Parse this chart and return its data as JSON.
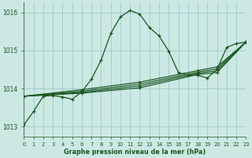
{
  "title": "Graphe pression niveau de la mer (hPa)",
  "bg_color": "#cce8e3",
  "grid_color": "#99cccc",
  "line_color_dark": "#1a5520",
  "xlim": [
    0,
    23
  ],
  "ylim": [
    1012.75,
    1016.25
  ],
  "yticks": [
    1013,
    1014,
    1015,
    1016
  ],
  "xticks": [
    0,
    1,
    2,
    3,
    4,
    5,
    6,
    7,
    8,
    9,
    10,
    11,
    12,
    13,
    14,
    15,
    16,
    17,
    18,
    19,
    20,
    21,
    22,
    23
  ],
  "hourly_x": [
    0,
    1,
    2,
    3,
    4,
    5,
    6,
    7,
    8,
    9,
    10,
    11,
    12,
    13,
    14,
    15,
    16,
    17,
    18,
    19,
    20,
    21,
    22,
    23
  ],
  "hourly_y": [
    1013.05,
    1013.4,
    1013.8,
    1013.82,
    1013.78,
    1013.72,
    1013.92,
    1014.25,
    1014.75,
    1015.45,
    1015.88,
    1016.05,
    1015.95,
    1015.6,
    1015.38,
    1014.98,
    1014.42,
    1014.35,
    1014.35,
    1014.28,
    1014.5,
    1015.08,
    1015.18,
    1015.22
  ],
  "straight_lines": [
    {
      "x": [
        0,
        6,
        12,
        18,
        20,
        23
      ],
      "y": [
        1013.8,
        1013.88,
        1014.02,
        1014.37,
        1014.42,
        1015.22
      ]
    },
    {
      "x": [
        0,
        6,
        12,
        18,
        20,
        23
      ],
      "y": [
        1013.8,
        1013.9,
        1014.07,
        1014.4,
        1014.47,
        1015.22
      ]
    },
    {
      "x": [
        0,
        6,
        12,
        18,
        20,
        23
      ],
      "y": [
        1013.8,
        1013.93,
        1014.12,
        1014.43,
        1014.52,
        1015.22
      ]
    },
    {
      "x": [
        0,
        6,
        12,
        18,
        20,
        23
      ],
      "y": [
        1013.8,
        1013.97,
        1014.17,
        1014.47,
        1014.57,
        1015.22
      ]
    }
  ]
}
